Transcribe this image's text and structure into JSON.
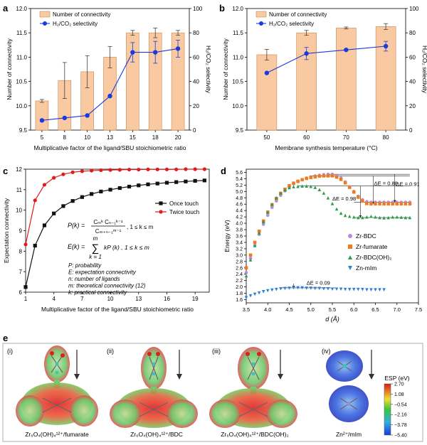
{
  "panel_letters": {
    "a": "a",
    "b": "b",
    "c": "c",
    "d": "d",
    "e": "e"
  },
  "chart_data": [
    {
      "panel": "a",
      "type": "bar",
      "categories": [
        "5",
        "8",
        "10",
        "13",
        "15",
        "18",
        "20"
      ],
      "series": [
        {
          "name": "Number of connectivity",
          "type": "bar",
          "axis": "left",
          "values": [
            10.1,
            10.52,
            10.7,
            11.0,
            11.5,
            11.5,
            11.5
          ],
          "errors": [
            0.03,
            0.37,
            0.33,
            0.22,
            0.05,
            0.1,
            0.05
          ],
          "color": "#f9c9a1"
        },
        {
          "name": "H₂/CO₂ selectivity",
          "type": "line",
          "axis": "right",
          "values": [
            8,
            10,
            12,
            28,
            64,
            64,
            67
          ],
          "errors": [
            0,
            0,
            0,
            0,
            8,
            9,
            7
          ],
          "color": "#1a3adb"
        }
      ],
      "xlabel": "Multiplicative factor of the ligand/SBU stoichiometric ratio",
      "ylabel": "Number of connectivity",
      "y2label": "H₂/CO₂ selectivity",
      "ylim": [
        9.5,
        12.0
      ],
      "y2lim": [
        0,
        100
      ],
      "yticks": [
        "9.5",
        "10.0",
        "10.5",
        "11.0",
        "11.5",
        "12.0"
      ],
      "y2ticks": [
        "0",
        "20",
        "40",
        "60",
        "80",
        "100"
      ],
      "legend": "top-left"
    },
    {
      "panel": "b",
      "type": "bar",
      "categories": [
        "50",
        "60",
        "70",
        "80"
      ],
      "series": [
        {
          "name": "Number of connectivity",
          "type": "bar",
          "axis": "left",
          "values": [
            11.05,
            11.5,
            11.6,
            11.63
          ],
          "errors": [
            0.11,
            0.05,
            0.02,
            0.06
          ],
          "color": "#f9c9a1"
        },
        {
          "name": "H₂/CO₂ selectivity",
          "type": "line",
          "axis": "right",
          "values": [
            47,
            63,
            66,
            69
          ],
          "errors": [
            0,
            5,
            0,
            4
          ],
          "color": "#1a3adb"
        }
      ],
      "xlabel": "Membrane synthesis temperature (°C)",
      "ylabel": "Number of connectivity",
      "y2label": "H₂/CO₂ selectivity",
      "ylim": [
        9.5,
        12.0
      ],
      "y2lim": [
        0,
        100
      ],
      "yticks": [
        "9.5",
        "10.0",
        "10.5",
        "11.0",
        "11.5",
        "12.0"
      ],
      "y2ticks": [
        "0",
        "20",
        "40",
        "60",
        "80",
        "100"
      ],
      "legend": "top-left"
    },
    {
      "panel": "c",
      "type": "line",
      "x": [
        1,
        2,
        3,
        4,
        5,
        6,
        7,
        8,
        9,
        10,
        11,
        12,
        13,
        14,
        15,
        16,
        17,
        18,
        19,
        20
      ],
      "series": [
        {
          "name": "Once touch",
          "marker": "square",
          "color": "#111111",
          "values": [
            6.25,
            8.27,
            9.26,
            9.84,
            10.2,
            10.45,
            10.64,
            10.79,
            10.91,
            11.0,
            11.08,
            11.15,
            11.21,
            11.26,
            11.3,
            11.34,
            11.37,
            11.4,
            11.43,
            11.45
          ]
        },
        {
          "name": "Twice touch",
          "marker": "circle",
          "color": "#e01b1b",
          "values": [
            8.33,
            10.48,
            11.24,
            11.58,
            11.75,
            11.85,
            11.9,
            11.93,
            11.95,
            11.96,
            11.97,
            11.98,
            11.98,
            11.99,
            11.99,
            11.99,
            11.99,
            12.0,
            12.0,
            12.0
          ]
        }
      ],
      "xlabel": "Multiplicative factor of the ligand/SBU stoichiometric ratio",
      "ylabel": "Expectation connectivity",
      "xlim": [
        1,
        20.5
      ],
      "ylim": [
        6,
        12
      ],
      "xticks": [
        "1",
        "4",
        "7",
        "10",
        "13",
        "16",
        "19"
      ],
      "yticks": [
        "6",
        "7",
        "8",
        "9",
        "10",
        "11",
        "12"
      ],
      "legend": "right",
      "annotations": {
        "eq1_lhs": "P(k) =",
        "eq1_num": "Cₘᵏ Cₙ₋₁ᵏ⁻¹",
        "eq1_den": "Cₘ₊ₙ₋₁ᵐ⁻¹",
        "eq1_cond": ", 1 ≤ k ≤ m",
        "eq2_lhs": "E(k) =",
        "eq2_top": "m",
        "eq2_sum": "∑",
        "eq2_bot": "k = 1",
        "eq2_rhs": "kP (k) , 1 ≤ k ≤ m",
        "defs": [
          "P: probability",
          "E: expectation connectivity",
          "n: number of ligands",
          "m: theoretical connectivity (12)",
          "k: practical connectivity"
        ]
      }
    },
    {
      "panel": "d",
      "type": "scatter",
      "series": [
        {
          "name": "Zr-BDC",
          "marker": "circle",
          "color": "#b58be0",
          "x": [
            3.5,
            3.6,
            3.7,
            3.8,
            3.9,
            4.0,
            4.1,
            4.2,
            4.3,
            4.4,
            4.5,
            4.6,
            4.7,
            4.8,
            4.9,
            5.0,
            5.1,
            5.2,
            5.3,
            5.4,
            5.5,
            5.6,
            5.7,
            5.8,
            5.9,
            6.0,
            6.1,
            6.2,
            6.3,
            6.4,
            6.5,
            6.6,
            6.7,
            6.8,
            6.9,
            7.0,
            7.1,
            7.2,
            7.3
          ],
          "y": [
            2.45,
            2.9,
            3.3,
            3.65,
            3.97,
            4.25,
            4.5,
            4.7,
            4.88,
            5.02,
            5.14,
            5.24,
            5.31,
            5.37,
            5.42,
            5.46,
            5.49,
            5.51,
            5.53,
            5.54,
            5.54,
            5.5,
            5.42,
            5.3,
            5.15,
            5.0,
            4.85,
            4.74,
            4.68,
            4.66,
            4.66,
            4.66,
            4.66,
            4.66,
            4.66,
            4.66,
            4.66,
            4.66,
            4.66
          ]
        },
        {
          "name": "Zr-fumarate",
          "marker": "square",
          "color": "#f07a1e",
          "x": [
            3.5,
            3.6,
            3.7,
            3.8,
            3.9,
            4.0,
            4.1,
            4.2,
            4.3,
            4.4,
            4.5,
            4.6,
            4.7,
            4.8,
            4.9,
            5.0,
            5.1,
            5.2,
            5.3,
            5.4,
            5.5,
            5.6,
            5.7,
            5.8,
            5.9,
            6.0,
            6.1,
            6.2,
            6.3,
            6.4,
            6.5,
            6.6,
            6.7,
            6.8,
            6.9,
            7.0,
            7.1,
            7.2,
            7.3
          ],
          "y": [
            2.6,
            3.0,
            3.4,
            3.75,
            4.07,
            4.35,
            4.58,
            4.78,
            4.94,
            5.07,
            5.18,
            5.26,
            5.32,
            5.37,
            5.41,
            5.44,
            5.46,
            5.48,
            5.49,
            5.49,
            5.49,
            5.45,
            5.38,
            5.27,
            5.13,
            4.98,
            4.82,
            4.7,
            4.62,
            4.61,
            4.61,
            4.61,
            4.61,
            4.61,
            4.61,
            4.61,
            4.61,
            4.61,
            4.61
          ]
        },
        {
          "name": "Zr-BDC(OH)₂",
          "marker": "triangle-up",
          "color": "#2c9e4b",
          "x": [
            3.5,
            3.6,
            3.7,
            3.8,
            3.9,
            4.0,
            4.1,
            4.2,
            4.3,
            4.4,
            4.5,
            4.6,
            4.7,
            4.8,
            4.9,
            5.0,
            5.1,
            5.2,
            5.3,
            5.4,
            5.5,
            5.6,
            5.7,
            5.8,
            5.9,
            6.0,
            6.1,
            6.2,
            6.3,
            6.4,
            6.5,
            6.6,
            6.7,
            6.8,
            6.9,
            7.0,
            7.1,
            7.2,
            7.3
          ],
          "y": [
            2.35,
            2.85,
            3.3,
            3.7,
            4.05,
            4.35,
            4.6,
            4.8,
            4.95,
            5.05,
            5.12,
            5.15,
            5.16,
            5.17,
            5.17,
            5.16,
            5.13,
            5.06,
            4.95,
            4.8,
            4.62,
            4.45,
            4.32,
            4.25,
            4.22,
            4.2,
            4.18,
            4.18,
            4.2,
            4.22,
            4.2,
            4.18,
            4.17,
            4.18,
            4.2,
            4.2,
            4.19,
            4.18,
            4.18
          ]
        },
        {
          "name": "Zn-mIm",
          "marker": "triangle-down",
          "color": "#2f7fd6",
          "x": [
            3.5,
            3.6,
            3.7,
            3.8,
            3.9,
            4.0,
            4.1,
            4.2,
            4.3,
            4.4,
            4.5,
            4.6,
            4.7,
            4.8,
            4.9,
            5.0,
            5.1,
            5.2,
            5.3,
            5.4,
            5.5,
            5.6,
            5.7,
            5.8,
            5.9,
            6.0,
            6.1,
            6.2,
            6.3,
            6.4,
            6.5,
            6.6,
            6.7
          ],
          "y": [
            1.66,
            1.72,
            1.77,
            1.81,
            1.85,
            1.88,
            1.9,
            1.92,
            1.94,
            1.95,
            1.96,
            1.97,
            1.97,
            1.97,
            1.96,
            1.96,
            1.95,
            1.95,
            1.94,
            1.94,
            1.93,
            1.93,
            1.93,
            1.92,
            1.92,
            1.92,
            1.92,
            1.92,
            1.91,
            1.91,
            1.91,
            1.91,
            1.91
          ]
        }
      ],
      "xlabel": "d (Å)",
      "ylabel": "Energy (eV)",
      "xlim": [
        3.5,
        7.5
      ],
      "ylim": [
        1.5,
        5.7
      ],
      "xticks": [
        "3.5",
        "4.0",
        "4.5",
        "5.0",
        "5.5",
        "6.0",
        "6.5",
        "7.0",
        "7.5"
      ],
      "yticks": [
        "1.6",
        "1.8",
        "2.0",
        "2.2",
        "2.4",
        "2.6",
        "2.8",
        "3.0",
        "3.2",
        "3.4",
        "3.6",
        "3.8",
        "4.0",
        "4.2",
        "4.4",
        "4.6",
        "4.8",
        "5.0",
        "5.2",
        "5.4",
        "5.6"
      ],
      "legend": "bottom-right",
      "annotations": [
        "ΔE = 0.88",
        "ΔE = 0.91",
        "ΔE = 0.98",
        "ΔE = 0.09"
      ]
    }
  ],
  "panel_e": {
    "labels": [
      "(i)",
      "(ii)",
      "(iii)",
      "(iv)"
    ],
    "captions": [
      "Zr₆O₄(OH)₄¹²⁺/fumarate",
      "Zr₆O₄(OH)₄¹²⁺/BDC",
      "Zr₆O₄(OH)₄¹²⁺/BDC(OH)₂",
      "Zn²⁺/mIm"
    ],
    "colorbar_title": "ESP (eV)",
    "colorbar_ticks": [
      "2.70",
      "1.08",
      "−0.54",
      "−2.16",
      "−3.78",
      "−5.40"
    ],
    "colors": {
      "esp_top": "#e02020",
      "esp_mid": "#3cc43c",
      "esp_bottom": "#1a3adb"
    }
  }
}
